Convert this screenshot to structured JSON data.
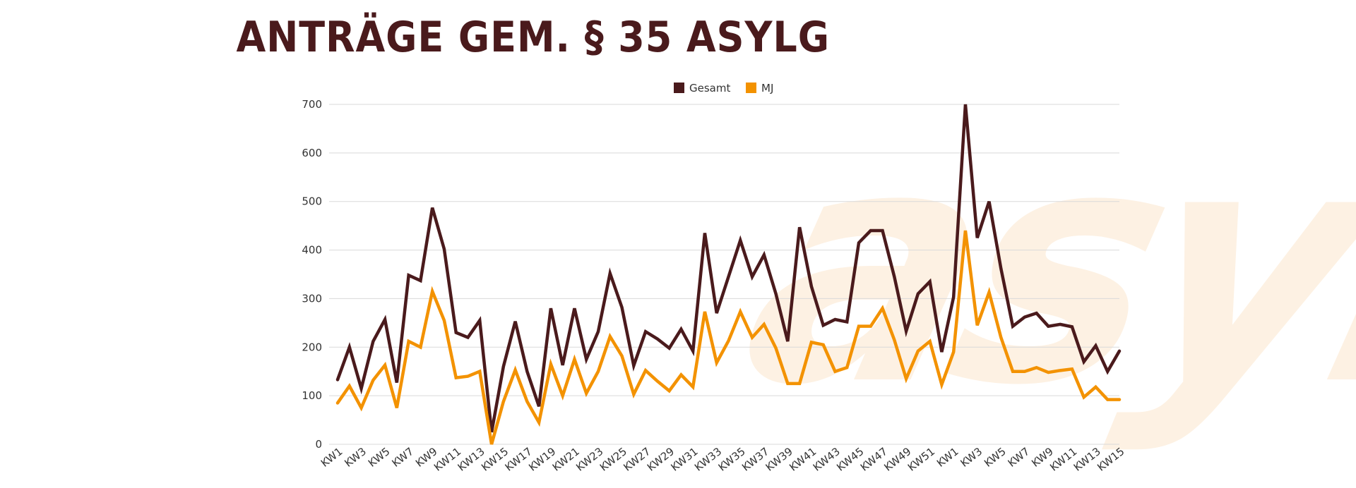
{
  "title": "ANTRÄGE GEM. § 35 ASYLG",
  "watermark": "asyl",
  "colors": {
    "gesamt": "#4a1a1c",
    "mj": "#f39200",
    "grid": "#d9d9d9",
    "title": "#4a1a1c"
  },
  "chart_data": {
    "type": "line",
    "title": "ANTRÄGE GEM. § 35 ASYLG",
    "xlabel": "",
    "ylabel": "",
    "ylim": [
      0,
      700
    ],
    "yticks": [
      0,
      100,
      200,
      300,
      400,
      500,
      600,
      700
    ],
    "grid": true,
    "legend_position": "top",
    "x": [
      "KW1",
      "KW2",
      "KW3",
      "KW4",
      "KW5",
      "KW6",
      "KW7",
      "KW8",
      "KW9",
      "KW10",
      "KW11",
      "KW12",
      "KW13",
      "KW14",
      "KW15",
      "KW16",
      "KW17",
      "KW18",
      "KW19",
      "KW20",
      "KW21",
      "KW22",
      "KW23",
      "KW24",
      "KW25",
      "KW26",
      "KW27",
      "KW28",
      "KW29",
      "KW30",
      "KW31",
      "KW32",
      "KW33",
      "KW34",
      "KW35",
      "KW36",
      "KW37",
      "KW38",
      "KW39",
      "KW40",
      "KW41",
      "KW42",
      "KW43",
      "KW44",
      "KW45",
      "KW46",
      "KW47",
      "KW48",
      "KW49",
      "KW50",
      "KW51",
      "KW52",
      "KW1",
      "KW2",
      "KW3",
      "KW4",
      "KW5",
      "KW6",
      "KW7",
      "KW8",
      "KW9",
      "KW10",
      "KW11",
      "KW12",
      "KW13",
      "KW14",
      "KW15"
    ],
    "xtick_labels": [
      "KW1",
      "KW3",
      "KW5",
      "KW7",
      "KW9",
      "KW11",
      "KW13",
      "KW15",
      "KW17",
      "KW19",
      "KW21",
      "KW23",
      "KW25",
      "KW27",
      "KW29",
      "KW31",
      "KW33",
      "KW35",
      "KW37",
      "KW39",
      "KW41",
      "KW43",
      "KW45",
      "KW47",
      "KW49",
      "KW51",
      "KW1",
      "KW3",
      "KW5",
      "KW7",
      "KW9",
      "KW11",
      "KW13",
      "KW15"
    ],
    "series": [
      {
        "name": "Gesamt",
        "color": "#4a1a1c",
        "values": [
          133,
          200,
          115,
          212,
          257,
          127,
          348,
          337,
          487,
          402,
          230,
          220,
          255,
          25,
          160,
          253,
          150,
          78,
          280,
          163,
          280,
          175,
          232,
          352,
          282,
          162,
          232,
          217,
          198,
          237,
          192,
          435,
          270,
          345,
          420,
          345,
          390,
          310,
          212,
          447,
          325,
          245,
          257,
          252,
          415,
          440,
          440,
          345,
          233,
          310,
          335,
          190,
          303,
          700,
          425,
          500,
          362,
          243,
          262,
          270,
          243,
          247,
          242,
          170,
          203,
          150,
          192
        ]
      },
      {
        "name": "MJ",
        "color": "#f39200",
        "values": [
          85,
          120,
          75,
          132,
          163,
          75,
          212,
          200,
          315,
          255,
          137,
          140,
          150,
          0,
          88,
          153,
          88,
          45,
          165,
          100,
          175,
          105,
          150,
          222,
          182,
          103,
          152,
          130,
          110,
          143,
          118,
          273,
          168,
          213,
          273,
          220,
          247,
          198,
          125,
          125,
          210,
          205,
          150,
          158,
          243,
          243,
          280,
          215,
          135,
          192,
          212,
          123,
          190,
          440,
          245,
          313,
          220,
          150,
          150,
          158,
          148,
          152,
          155,
          97,
          118,
          92,
          92
        ]
      }
    ]
  }
}
